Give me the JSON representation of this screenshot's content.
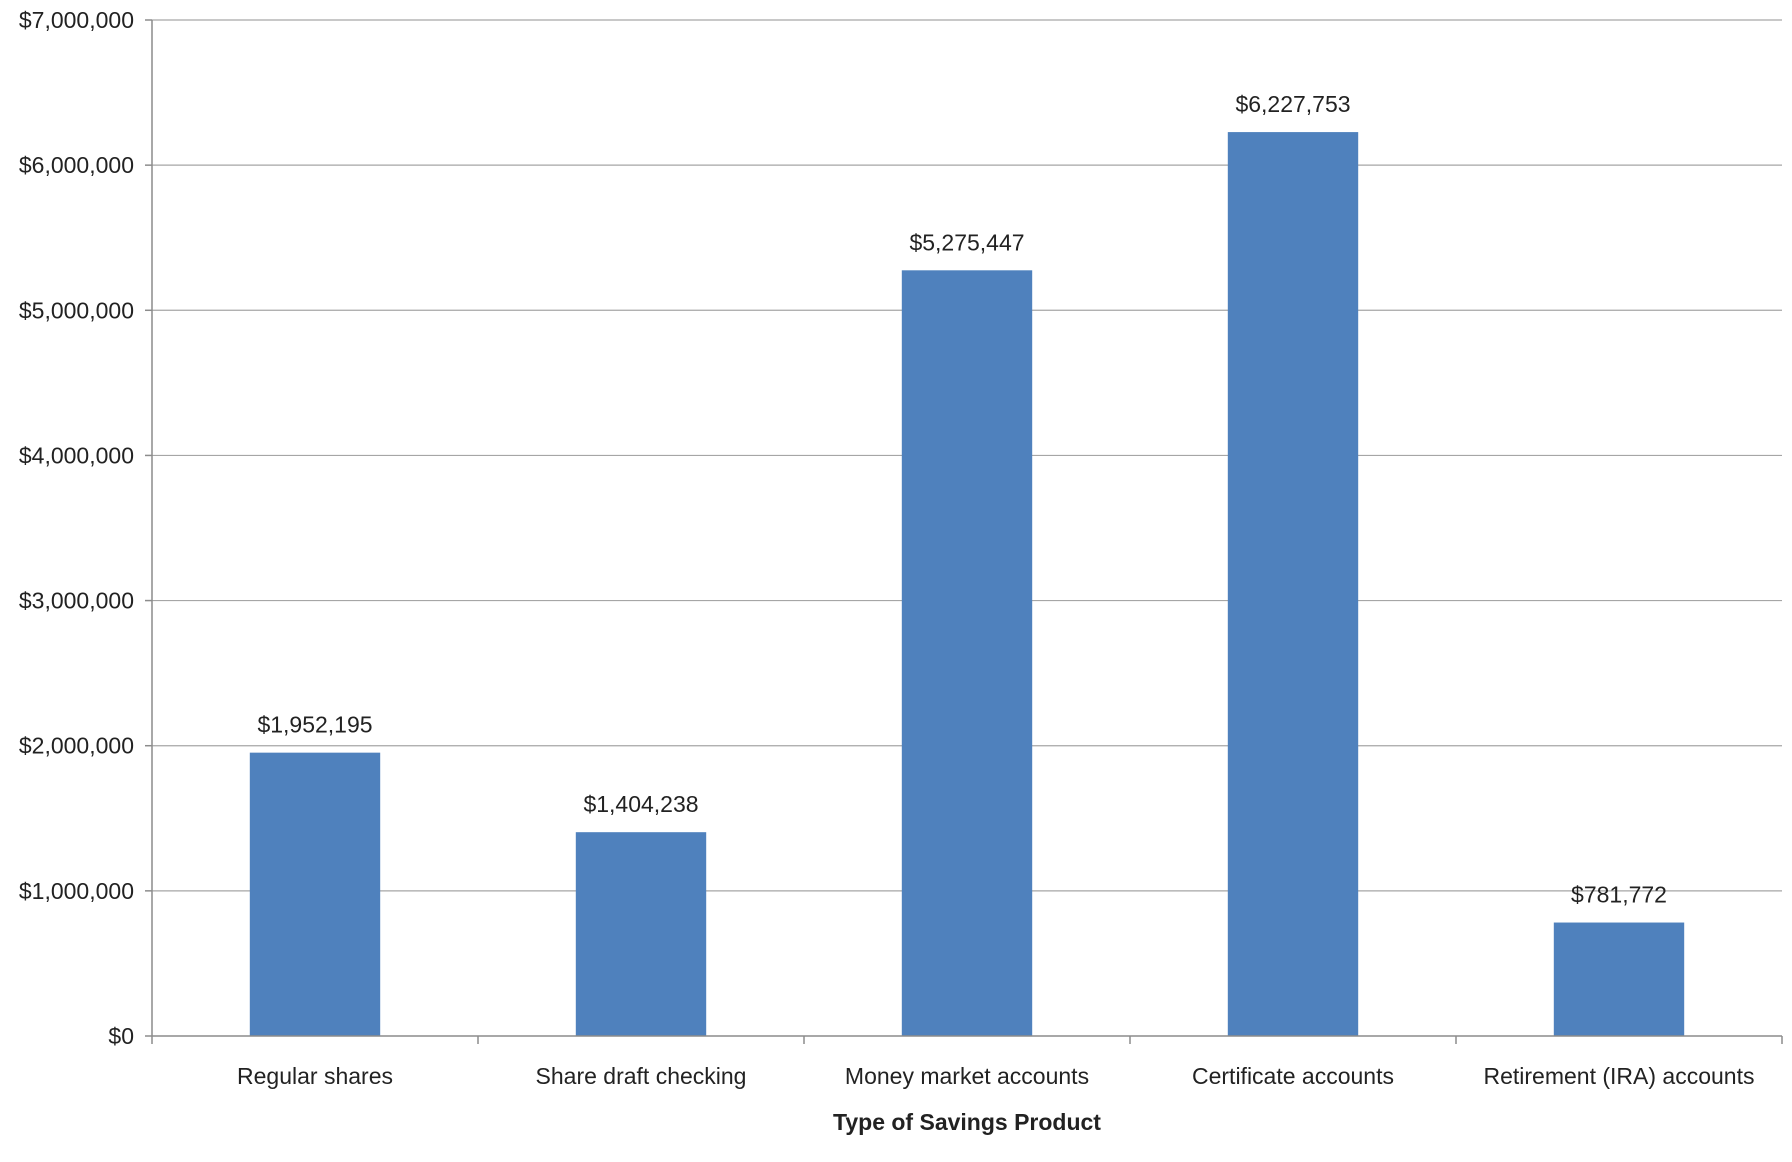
{
  "chart_data": {
    "type": "bar",
    "title": "",
    "xlabel": "Type of Savings Product",
    "ylabel": "",
    "categories": [
      "Regular shares",
      "Share draft checking",
      "Money market accounts",
      "Certificate accounts",
      "Retirement (IRA) accounts"
    ],
    "values": [
      1952195,
      1404238,
      5275447,
      6227753,
      781772
    ],
    "data_labels": [
      "$1,952,195",
      "$1,404,238",
      "$5,275,447",
      "$6,227,753",
      "$781,772"
    ],
    "ylim": [
      0,
      7000000
    ],
    "yticks": [
      0,
      1000000,
      2000000,
      3000000,
      4000000,
      5000000,
      6000000,
      7000000
    ],
    "ytick_labels": [
      "$0",
      "$1,000,000",
      "$2,000,000",
      "$3,000,000",
      "$4,000,000",
      "$5,000,000",
      "$6,000,000",
      "$7,000,000"
    ],
    "grid": true,
    "legend": "none",
    "bar_color": "#4f81bd"
  }
}
